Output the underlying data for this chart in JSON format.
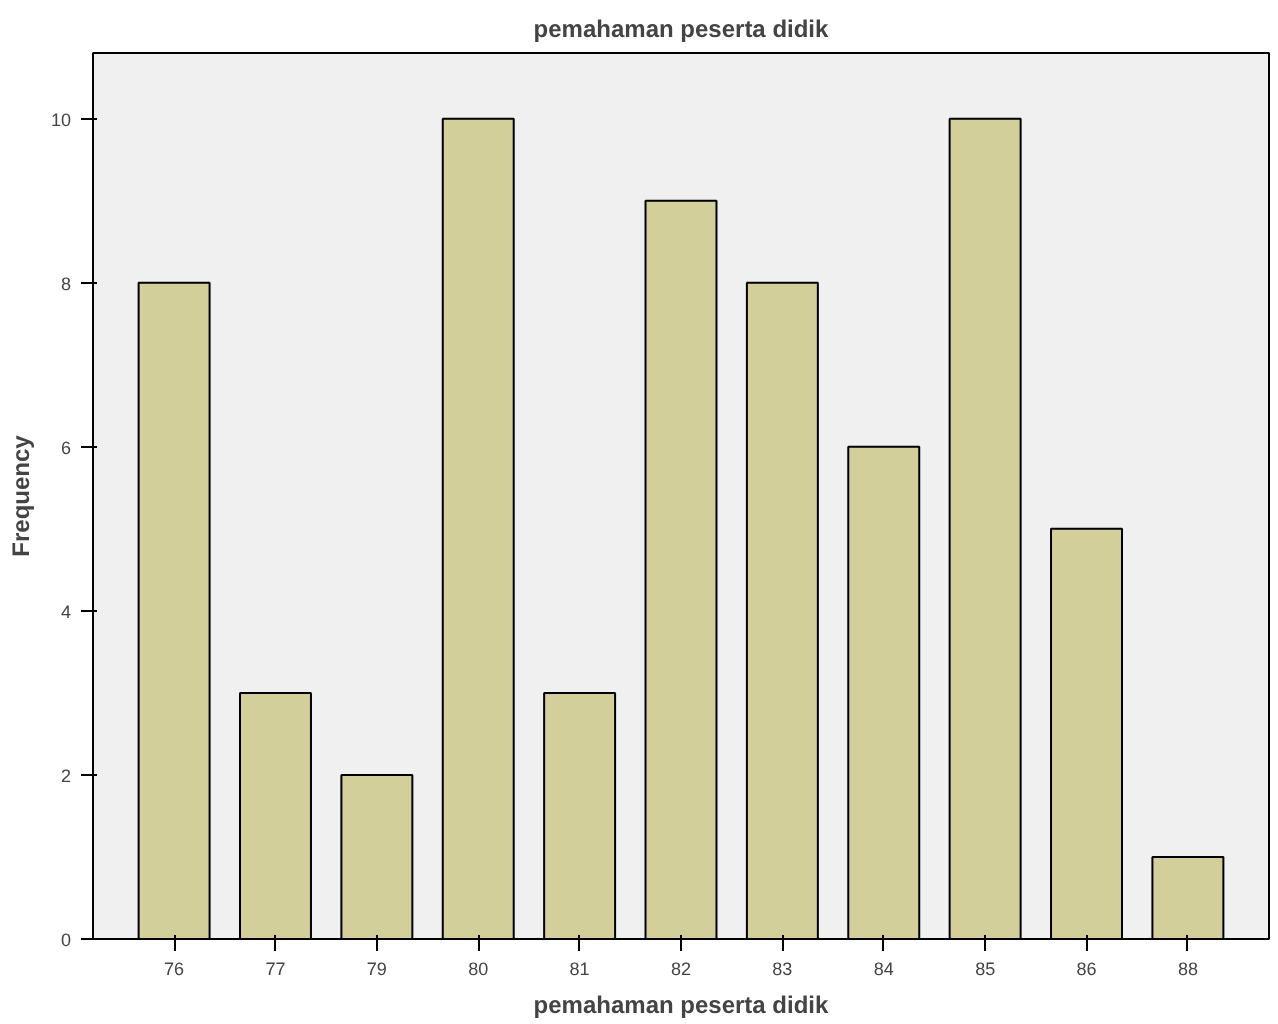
{
  "chart_data": {
    "type": "bar",
    "title": "pemahaman peserta didik",
    "xlabel": "pemahaman peserta didik",
    "ylabel": "Frequency",
    "categories": [
      "76",
      "77",
      "79",
      "80",
      "81",
      "82",
      "83",
      "84",
      "85",
      "86",
      "88"
    ],
    "values": [
      8,
      3,
      2,
      10,
      3,
      9,
      8,
      6,
      10,
      5,
      1
    ],
    "color": "#d3cf9b",
    "ylim": [
      0,
      10.8
    ],
    "yticks": [
      0,
      2,
      4,
      6,
      8,
      10
    ],
    "grid": false
  }
}
